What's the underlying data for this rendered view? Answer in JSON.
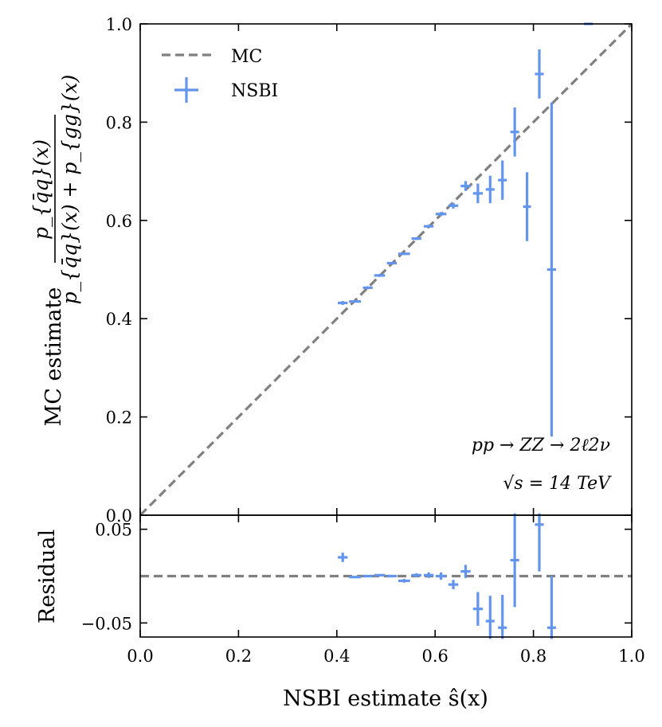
{
  "chart_data": {
    "type": "scatter",
    "main": {
      "ylabel_prefix": "MC estimate",
      "ylabel_numerator": "p_{q̄q}(x)",
      "ylabel_denominator": "p_{q̄q}(x) + p_{gg}(x)",
      "ylim": [
        0.0,
        1.0
      ],
      "xlim": [
        0.0,
        1.0
      ],
      "yticks": [
        "0.0",
        "0.2",
        "0.4",
        "0.6",
        "0.8",
        "1.0"
      ],
      "legend_position": "top-left",
      "legend": [
        {
          "label": "MC",
          "style": "dashed-line",
          "color": "#808080"
        },
        {
          "label": "NSBI",
          "style": "errorbar",
          "color": "#6495ed"
        }
      ],
      "annotations": [
        "pp → ZZ → 2ℓ2ν",
        "√s = 14 TeV"
      ],
      "reference_line": {
        "name": "MC",
        "x": [
          0.0,
          1.0
        ],
        "y": [
          0.0,
          1.0
        ]
      },
      "series": [
        {
          "name": "NSBI",
          "points": [
            {
              "x": 0.412,
              "xerr": 0.01,
              "y": 0.432,
              "yerr": 0.004
            },
            {
              "x": 0.437,
              "xerr": 0.012,
              "y": 0.435,
              "yerr": 0.0
            },
            {
              "x": 0.463,
              "xerr": 0.01,
              "y": 0.463,
              "yerr": 0.003
            },
            {
              "x": 0.487,
              "xerr": 0.011,
              "y": 0.488,
              "yerr": 0.003
            },
            {
              "x": 0.512,
              "xerr": 0.01,
              "y": 0.513,
              "yerr": 0.002
            },
            {
              "x": 0.537,
              "xerr": 0.012,
              "y": 0.532,
              "yerr": 0.002
            },
            {
              "x": 0.562,
              "xerr": 0.01,
              "y": 0.563,
              "yerr": 0.003
            },
            {
              "x": 0.587,
              "xerr": 0.01,
              "y": 0.588,
              "yerr": 0.003
            },
            {
              "x": 0.612,
              "xerr": 0.011,
              "y": 0.613,
              "yerr": 0.004
            },
            {
              "x": 0.637,
              "xerr": 0.01,
              "y": 0.63,
              "yerr": 0.006
            },
            {
              "x": 0.662,
              "xerr": 0.01,
              "y": 0.67,
              "yerr": 0.01
            },
            {
              "x": 0.687,
              "xerr": 0.01,
              "y": 0.655,
              "yerr": 0.02
            },
            {
              "x": 0.712,
              "xerr": 0.009,
              "y": 0.663,
              "yerr": 0.028
            },
            {
              "x": 0.737,
              "xerr": 0.009,
              "y": 0.682,
              "yerr": 0.04
            },
            {
              "x": 0.762,
              "xerr": 0.009,
              "y": 0.78,
              "yerr": 0.05
            },
            {
              "x": 0.787,
              "xerr": 0.008,
              "y": 0.628,
              "yerr": 0.07
            },
            {
              "x": 0.812,
              "xerr": 0.009,
              "y": 0.898,
              "yerr": 0.05
            },
            {
              "x": 0.837,
              "xerr": 0.009,
              "y": 0.5,
              "yerr": 0.34
            },
            {
              "x": 0.912,
              "xerr": 0.009,
              "y": 1.0,
              "yerr": 0.0
            }
          ]
        }
      ]
    },
    "residual": {
      "ylabel": "Residual",
      "ylim": [
        -0.065,
        0.065
      ],
      "yticks": [
        "0.05",
        "−0.05"
      ],
      "ytick_values": [
        0.05,
        -0.05
      ],
      "xlim": [
        0.0,
        1.0
      ],
      "xticks": [
        "0.0",
        "0.2",
        "0.4",
        "0.6",
        "0.8",
        "1.0"
      ],
      "xlabel": "NSBI estimate ŝ(x)",
      "reference_line": {
        "y": 0.0
      },
      "series": [
        {
          "name": "NSBI",
          "points": [
            {
              "x": 0.412,
              "xerr": 0.01,
              "y": 0.02,
              "yerr": 0.005
            },
            {
              "x": 0.437,
              "xerr": 0.012,
              "y": -0.001,
              "yerr": 0.0
            },
            {
              "x": 0.463,
              "xerr": 0.01,
              "y": 0.0,
              "yerr": 0.001
            },
            {
              "x": 0.487,
              "xerr": 0.011,
              "y": 0.001,
              "yerr": 0.001
            },
            {
              "x": 0.512,
              "xerr": 0.01,
              "y": 0.0,
              "yerr": 0.001
            },
            {
              "x": 0.537,
              "xerr": 0.012,
              "y": -0.005,
              "yerr": 0.002
            },
            {
              "x": 0.562,
              "xerr": 0.01,
              "y": 0.001,
              "yerr": 0.002
            },
            {
              "x": 0.587,
              "xerr": 0.01,
              "y": 0.001,
              "yerr": 0.003
            },
            {
              "x": 0.612,
              "xerr": 0.011,
              "y": 0.0,
              "yerr": 0.004
            },
            {
              "x": 0.637,
              "xerr": 0.01,
              "y": -0.009,
              "yerr": 0.005
            },
            {
              "x": 0.662,
              "xerr": 0.01,
              "y": 0.005,
              "yerr": 0.007
            },
            {
              "x": 0.687,
              "xerr": 0.01,
              "y": -0.035,
              "yerr": 0.018
            },
            {
              "x": 0.712,
              "xerr": 0.009,
              "y": -0.048,
              "yerr": 0.027
            },
            {
              "x": 0.737,
              "xerr": 0.009,
              "y": -0.055,
              "yerr": 0.035
            },
            {
              "x": 0.762,
              "xerr": 0.009,
              "y": 0.017,
              "yerr": 0.05
            },
            {
              "x": 0.812,
              "xerr": 0.009,
              "y": 0.055,
              "yerr": 0.05
            },
            {
              "x": 0.837,
              "xerr": 0.009,
              "y": -0.055,
              "yerr": 0.055
            }
          ]
        }
      ]
    }
  }
}
